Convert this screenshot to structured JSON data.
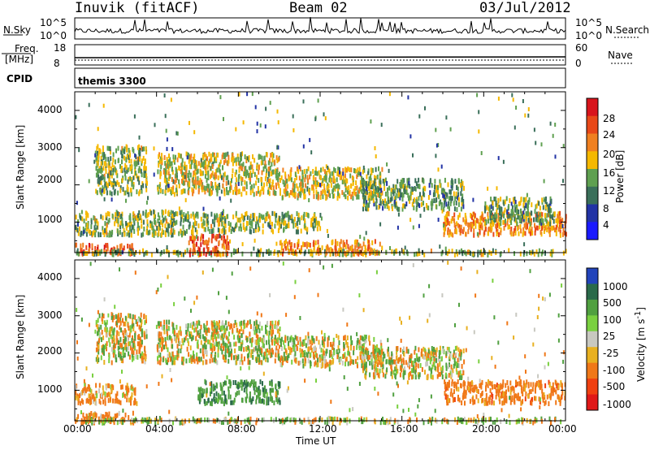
{
  "header": {
    "site": "Inuvik (fitACF)",
    "beam": "Beam 02",
    "date": "03/Jul/2012"
  },
  "top_panel": {
    "nsky_label": "N.Sky",
    "nsearch_label": "N.Search",
    "left_ticks": [
      "10^5",
      "10^0"
    ],
    "right_ticks": [
      "10^5",
      "10^0"
    ]
  },
  "freq_panel": {
    "freq_label": "Freq.",
    "freq_unit": "[MHz]",
    "nave_label": "Nave",
    "left_ticks": [
      "18",
      "8"
    ],
    "right_ticks": [
      "60",
      "0"
    ]
  },
  "cpid": {
    "label": "CPID",
    "value": "themis 3300"
  },
  "x_axis": {
    "label": "Time UT",
    "ticks": [
      "00:00",
      "04:00",
      "08:00",
      "12:00",
      "16:00",
      "20:00",
      "00:00"
    ]
  },
  "y_axis": {
    "label": "Slant Range [km]",
    "ticks": [
      "1000",
      "2000",
      "3000",
      "4000"
    ]
  },
  "power_bar": {
    "title": "Power [dB]",
    "ticks": [
      "4",
      "8",
      "12",
      "16",
      "20",
      "24",
      "28"
    ]
  },
  "velocity_bar": {
    "title": "Velocity [m s",
    "superscript": "-1",
    "close": "]",
    "ticks": [
      "1000",
      "500",
      "100",
      "25",
      "-25",
      "-100",
      "-500",
      "-1000"
    ]
  },
  "colors": {
    "power": [
      "#1a1aff",
      "#2233a5",
      "#3a6f5a",
      "#5fa050",
      "#f5b800",
      "#f08020",
      "#e84818",
      "#d8141c"
    ],
    "velocity": [
      "#2244bb",
      "#2a6a4a",
      "#50a040",
      "#7ad040",
      "#c8c8c0",
      "#e8b020",
      "#f07818",
      "#f04010",
      "#e01818"
    ]
  },
  "chart_data": [
    {
      "type": "heatmap",
      "panel": "power",
      "x_unit": "hours UT",
      "xlim": [
        0,
        24
      ],
      "y_unit": "km",
      "ylim": [
        180,
        4500
      ],
      "color_scale": {
        "min": 0,
        "max": 30,
        "unit": "dB"
      },
      "scatter_bands": [
        {
          "x": [
            0,
            3
          ],
          "y": [
            180,
            450
          ],
          "value": 24
        },
        {
          "x": [
            0,
            24
          ],
          "y": [
            180,
            300
          ],
          "value": 14
        },
        {
          "x": [
            5.5,
            7.5
          ],
          "y": [
            180,
            700
          ],
          "value": 24
        },
        {
          "x": [
            10,
            15
          ],
          "y": [
            200,
            550
          ],
          "value": 20
        },
        {
          "x": [
            0,
            6
          ],
          "y": [
            700,
            1350
          ],
          "value": 14
        },
        {
          "x": [
            6,
            12
          ],
          "y": [
            800,
            1300
          ],
          "value": 14
        },
        {
          "x": [
            18,
            24
          ],
          "y": [
            700,
            1300
          ],
          "value": 20
        },
        {
          "x": [
            1,
            3.5
          ],
          "y": [
            1800,
            3100
          ],
          "value": 14
        },
        {
          "x": [
            4,
            10
          ],
          "y": [
            1800,
            2900
          ],
          "value": 16
        },
        {
          "x": [
            10,
            15
          ],
          "y": [
            1700,
            2500
          ],
          "value": 16
        },
        {
          "x": [
            14,
            19
          ],
          "y": [
            1400,
            2200
          ],
          "value": 12
        },
        {
          "x": [
            20,
            23.5
          ],
          "y": [
            1000,
            1700
          ],
          "value": 12
        }
      ]
    },
    {
      "type": "heatmap",
      "panel": "velocity",
      "x_unit": "hours UT",
      "xlim": [
        0,
        24
      ],
      "y_unit": "km",
      "ylim": [
        180,
        4500
      ],
      "color_scale": {
        "min": -1000,
        "max": 1000,
        "unit": "m s-1"
      },
      "scatter_bands": [
        {
          "x": [
            0,
            3
          ],
          "y": [
            180,
            450
          ],
          "value": -200
        },
        {
          "x": [
            0,
            3
          ],
          "y": [
            700,
            1200
          ],
          "value": -200
        },
        {
          "x": [
            1,
            3.5
          ],
          "y": [
            1800,
            3100
          ],
          "value": 0
        },
        {
          "x": [
            4,
            10
          ],
          "y": [
            1800,
            2900
          ],
          "value": 0
        },
        {
          "x": [
            6,
            10
          ],
          "y": [
            700,
            1300
          ],
          "value": 400
        },
        {
          "x": [
            10,
            15
          ],
          "y": [
            1700,
            2500
          ],
          "value": 0
        },
        {
          "x": [
            14,
            19
          ],
          "y": [
            1400,
            2200
          ],
          "value": 0
        },
        {
          "x": [
            18,
            24
          ],
          "y": [
            700,
            1300
          ],
          "value": -300
        },
        {
          "x": [
            0,
            24
          ],
          "y": [
            180,
            300
          ],
          "value": 60
        }
      ]
    }
  ]
}
